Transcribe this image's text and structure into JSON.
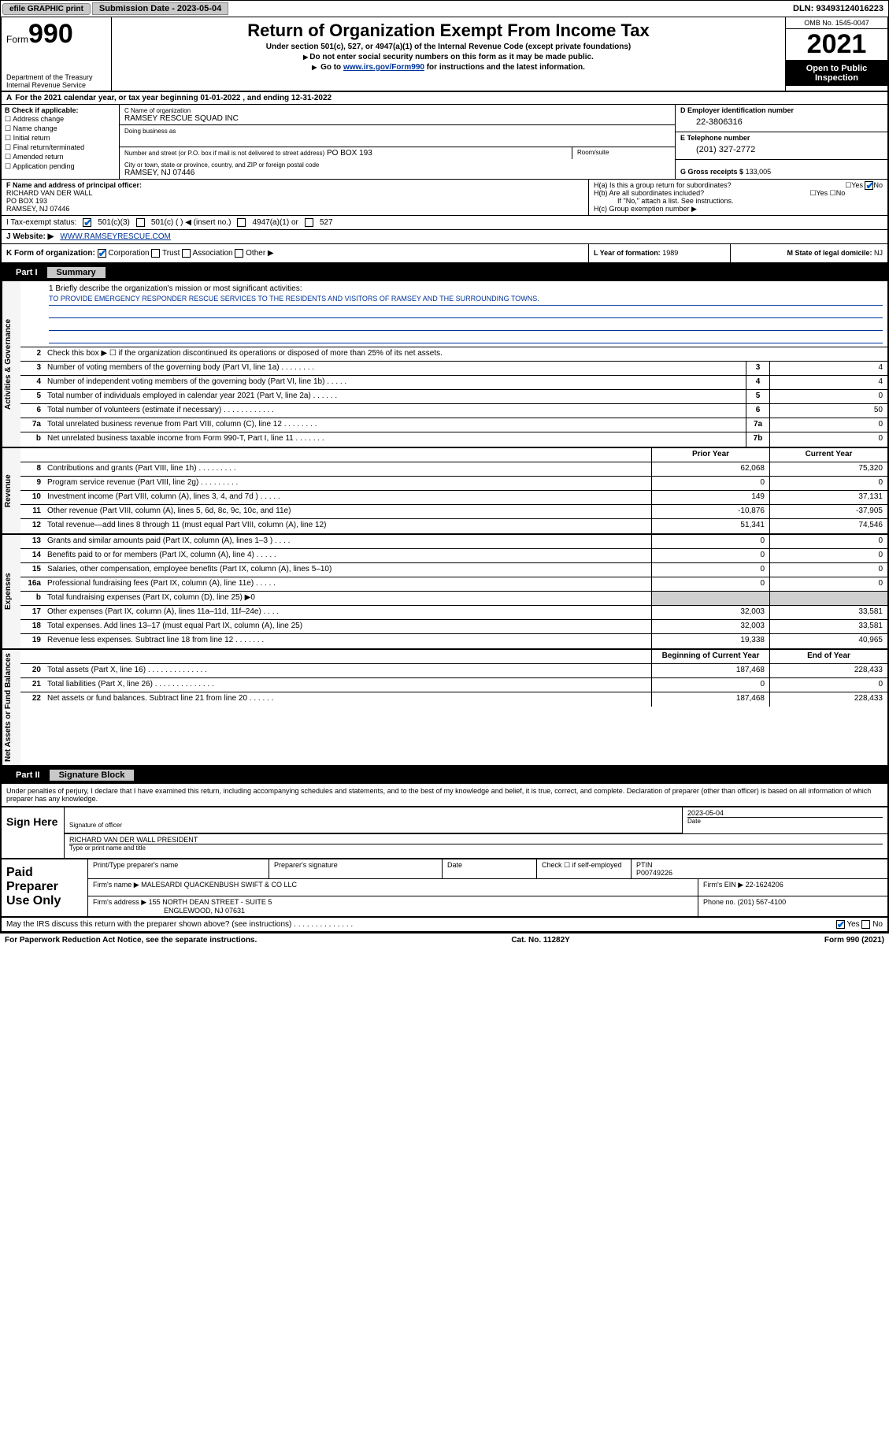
{
  "topbar": {
    "efile": "efile GRAPHIC print",
    "submission": "Submission Date - 2023-05-04",
    "dln": "DLN: 93493124016223"
  },
  "header": {
    "form_label": "Form",
    "form_number": "990",
    "dept": "Department of the Treasury",
    "irs": "Internal Revenue Service",
    "title": "Return of Organization Exempt From Income Tax",
    "subtitle1": "Under section 501(c), 527, or 4947(a)(1) of the Internal Revenue Code (except private foundations)",
    "subtitle2": "Do not enter social security numbers on this form as it may be made public.",
    "subtitle3_pre": "Go to ",
    "subtitle3_link": "www.irs.gov/Form990",
    "subtitle3_post": " for instructions and the latest information.",
    "omb": "OMB No. 1545-0047",
    "year": "2021",
    "inspect": "Open to Public Inspection"
  },
  "row_a": {
    "text": "For the 2021 calendar year, or tax year beginning 01-01-2022    , and ending 12-31-2022"
  },
  "col_b": {
    "label": "B Check if applicable:",
    "items": [
      "Address change",
      "Name change",
      "Initial return",
      "Final return/terminated",
      "Amended return",
      "Application pending"
    ]
  },
  "col_c": {
    "name_lbl": "C Name of organization",
    "name": "RAMSEY RESCUE SQUAD INC",
    "dba_lbl": "Doing business as",
    "dba": "",
    "addr_lbl": "Number and street (or P.O. box if mail is not delivered to street address)",
    "room_lbl": "Room/suite",
    "addr": "PO BOX 193",
    "city_lbl": "City or town, state or province, country, and ZIP or foreign postal code",
    "city": "RAMSEY, NJ 07446"
  },
  "col_d": {
    "ein_lbl": "D Employer identification number",
    "ein": "22-3806316",
    "phone_lbl": "E Telephone number",
    "phone": "(201) 327-2772",
    "gross_lbl": "G Gross receipts $",
    "gross": "133,005"
  },
  "row_f": {
    "lbl": "F  Name and address of principal officer:",
    "name": "RICHARD VAN DER WALL",
    "addr1": "PO BOX 193",
    "addr2": "RAMSEY, NJ  07446"
  },
  "row_h": {
    "ha": "H(a)  Is this a group return for subordinates?",
    "ha_ans": "No",
    "hb": "H(b)  Are all subordinates included?",
    "hb_note": "If \"No,\" attach a list. See instructions.",
    "hc": "H(c)  Group exemption number ▶"
  },
  "row_i": {
    "lbl": "I    Tax-exempt status:",
    "opts": [
      "501(c)(3)",
      "501(c) (  ) ◀ (insert no.)",
      "4947(a)(1) or",
      "527"
    ]
  },
  "row_j": {
    "lbl": "J    Website: ▶",
    "val": "WWW.RAMSEYRESCUE.COM"
  },
  "row_k": {
    "lbl": "K Form of organization:",
    "opts": [
      "Corporation",
      "Trust",
      "Association",
      "Other ▶"
    ]
  },
  "row_l": {
    "lbl": "L Year of formation:",
    "val": "1989"
  },
  "row_m": {
    "lbl": "M State of legal domicile:",
    "val": "NJ"
  },
  "part1": {
    "header": "Part I",
    "title": "Summary",
    "q1_lbl": "1   Briefly describe the organization's mission or most significant activities:",
    "q1_val": "TO PROVIDE EMERGENCY RESPONDER RESCUE SERVICES TO THE RESIDENTS AND VISITORS OF RAMSEY AND THE SURROUNDING TOWNS.",
    "q2": "Check this box ▶ ☐  if the organization discontinued its operations or disposed of more than 25% of its net assets.",
    "sections": {
      "gov": "Activities & Governance",
      "rev": "Revenue",
      "exp": "Expenses",
      "net": "Net Assets or Fund Balances"
    },
    "hdr_prior": "Prior Year",
    "hdr_current": "Current Year",
    "hdr_begin": "Beginning of Current Year",
    "hdr_end": "End of Year",
    "rows_gov": [
      {
        "n": "3",
        "d": "Number of voting members of the governing body (Part VI, line 1a)   .    .    .    .    .    .    .    .",
        "b": "3",
        "v": "4"
      },
      {
        "n": "4",
        "d": "Number of independent voting members of the governing body (Part VI, line 1b)  .    .    .    .    .",
        "b": "4",
        "v": "4"
      },
      {
        "n": "5",
        "d": "Total number of individuals employed in calendar year 2021 (Part V, line 2a)   .    .    .    .    .    .",
        "b": "5",
        "v": "0"
      },
      {
        "n": "6",
        "d": "Total number of volunteers (estimate if necessary)   .    .    .    .    .    .    .    .    .    .    .    .",
        "b": "6",
        "v": "50"
      },
      {
        "n": "7a",
        "d": "Total unrelated business revenue from Part VIII, column (C), line 12   .    .    .    .    .    .    .    .",
        "b": "7a",
        "v": "0"
      },
      {
        "n": "b",
        "d": "Net unrelated business taxable income from Form 990-T, Part I, line 11   .    .    .    .    .    .    .",
        "b": "7b",
        "v": "0"
      }
    ],
    "rows_rev": [
      {
        "n": "8",
        "d": "Contributions and grants (Part VIII, line 1h)   .    .    .    .    .    .    .    .    .",
        "p": "62,068",
        "c": "75,320"
      },
      {
        "n": "9",
        "d": "Program service revenue (Part VIII, line 2g)   .    .    .    .    .    .    .    .    .",
        "p": "0",
        "c": "0"
      },
      {
        "n": "10",
        "d": "Investment income (Part VIII, column (A), lines 3, 4, and 7d )    .    .    .    .    .",
        "p": "149",
        "c": "37,131"
      },
      {
        "n": "11",
        "d": "Other revenue (Part VIII, column (A), lines 5, 6d, 8c, 9c, 10c, and 11e)",
        "p": "-10,876",
        "c": "-37,905"
      },
      {
        "n": "12",
        "d": "Total revenue—add lines 8 through 11 (must equal Part VIII, column (A), line 12)",
        "p": "51,341",
        "c": "74,546"
      }
    ],
    "rows_exp": [
      {
        "n": "13",
        "d": "Grants and similar amounts paid (Part IX, column (A), lines 1–3 )   .    .    .    .",
        "p": "0",
        "c": "0"
      },
      {
        "n": "14",
        "d": "Benefits paid to or for members (Part IX, column (A), line 4)   .    .    .    .    .",
        "p": "0",
        "c": "0"
      },
      {
        "n": "15",
        "d": "Salaries, other compensation, employee benefits (Part IX, column (A), lines 5–10)",
        "p": "0",
        "c": "0"
      },
      {
        "n": "16a",
        "d": "Professional fundraising fees (Part IX, column (A), line 11e)   .    .    .    .    .",
        "p": "0",
        "c": "0"
      },
      {
        "n": "b",
        "d": "Total fundraising expenses (Part IX, column (D), line 25) ▶0",
        "p": "",
        "c": "",
        "shade": true
      },
      {
        "n": "17",
        "d": "Other expenses (Part IX, column (A), lines 11a–11d, 11f–24e)   .    .    .    .",
        "p": "32,003",
        "c": "33,581"
      },
      {
        "n": "18",
        "d": "Total expenses. Add lines 13–17 (must equal Part IX, column (A), line 25)",
        "p": "32,003",
        "c": "33,581"
      },
      {
        "n": "19",
        "d": "Revenue less expenses. Subtract line 18 from line 12   .    .    .    .    .    .    .",
        "p": "19,338",
        "c": "40,965"
      }
    ],
    "rows_net": [
      {
        "n": "20",
        "d": "Total assets (Part X, line 16)   .    .    .    .    .    .    .    .    .    .    .    .    .    .",
        "p": "187,468",
        "c": "228,433"
      },
      {
        "n": "21",
        "d": "Total liabilities (Part X, line 26)   .    .    .    .    .    .    .    .    .    .    .    .    .    .",
        "p": "0",
        "c": "0"
      },
      {
        "n": "22",
        "d": "Net assets or fund balances. Subtract line 21 from line 20   .    .    .    .    .    .",
        "p": "187,468",
        "c": "228,433"
      }
    ]
  },
  "part2": {
    "header": "Part II",
    "title": "Signature Block",
    "perjury": "Under penalties of perjury, I declare that I have examined this return, including accompanying schedules and statements, and to the best of my knowledge and belief, it is true, correct, and complete. Declaration of preparer (other than officer) is based on all information of which preparer has any knowledge."
  },
  "sign": {
    "lbl": "Sign Here",
    "sig_lbl": "Signature of officer",
    "date": "2023-05-04",
    "date_lbl": "Date",
    "name": "RICHARD VAN DER WALL PRESIDENT",
    "name_lbl": "Type or print name and title"
  },
  "prep": {
    "lbl": "Paid Preparer Use Only",
    "h1": "Print/Type preparer's name",
    "h2": "Preparer's signature",
    "h3": "Date",
    "h4": "Check ☐ if self-employed",
    "h5_lbl": "PTIN",
    "h5": "P00749226",
    "firm_lbl": "Firm's name    ▶",
    "firm": "MALESARDI QUACKENBUSH SWIFT & CO LLC",
    "ein_lbl": "Firm's EIN ▶",
    "ein": "22-1624206",
    "addr_lbl": "Firm's address ▶",
    "addr1": "155 NORTH DEAN STREET - SUITE 5",
    "addr2": "ENGLEWOOD, NJ  07631",
    "phone_lbl": "Phone no.",
    "phone": "(201) 567-4100"
  },
  "footer": {
    "discuss": "May the IRS discuss this return with the preparer shown above? (see instructions)   .    .    .    .    .    .    .    .    .    .    .    .    .    .",
    "yes": "Yes",
    "no": "No",
    "paperwork": "For Paperwork Reduction Act Notice, see the separate instructions.",
    "cat": "Cat. No. 11282Y",
    "form": "Form 990 (2021)"
  }
}
